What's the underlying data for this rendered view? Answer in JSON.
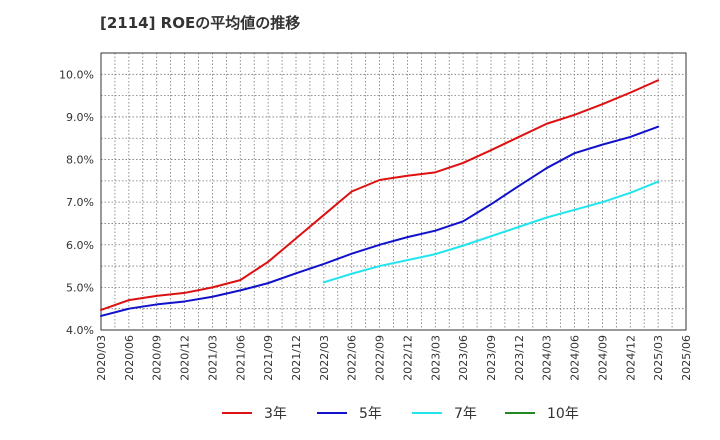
{
  "chart_data": {
    "type": "line",
    "title": "[2114]  ROEの平均値の推移",
    "xlabel": "",
    "ylabel": "",
    "ylim": [
      4.0,
      10.5
    ],
    "yticks": [
      4.0,
      5.0,
      6.0,
      7.0,
      8.0,
      9.0,
      10.0
    ],
    "ytick_labels": [
      "4.0%",
      "5.0%",
      "6.0%",
      "7.0%",
      "8.0%",
      "9.0%",
      "10.0%"
    ],
    "categories": [
      "2020/03",
      "2020/06",
      "2020/09",
      "2020/12",
      "2021/03",
      "2021/06",
      "2021/09",
      "2021/12",
      "2022/03",
      "2022/06",
      "2022/09",
      "2022/12",
      "2023/03",
      "2023/06",
      "2023/09",
      "2023/12",
      "2024/03",
      "2024/06",
      "2024/09",
      "2024/12",
      "2025/03",
      "2025/06"
    ],
    "grid": true,
    "legend_position": "bottom",
    "series": [
      {
        "name": "3年",
        "color": "#dd1111",
        "values": [
          4.47,
          4.7,
          4.8,
          4.87,
          5.0,
          5.17,
          5.6,
          6.15,
          6.7,
          7.25,
          7.52,
          7.62,
          7.7,
          7.92,
          8.22,
          8.53,
          8.84,
          9.05,
          9.3,
          9.57,
          9.86,
          null
        ]
      },
      {
        "name": "5年",
        "color": "#1111cc",
        "values": [
          4.33,
          4.5,
          4.6,
          4.67,
          4.78,
          4.93,
          5.1,
          5.33,
          5.55,
          5.79,
          6.0,
          6.18,
          6.33,
          6.55,
          6.95,
          7.38,
          7.8,
          8.15,
          8.35,
          8.53,
          8.77,
          null
        ]
      },
      {
        "name": "7年",
        "color": "#22e5ee",
        "values": [
          null,
          null,
          null,
          null,
          null,
          null,
          null,
          null,
          5.12,
          5.32,
          5.5,
          5.64,
          5.78,
          5.98,
          6.2,
          6.42,
          6.64,
          6.82,
          7.0,
          7.22,
          7.48,
          null
        ]
      },
      {
        "name": "10年",
        "color": "#228822",
        "values": [
          null,
          null,
          null,
          null,
          null,
          null,
          null,
          null,
          null,
          null,
          null,
          null,
          null,
          null,
          null,
          null,
          null,
          null,
          null,
          null,
          null,
          null
        ]
      }
    ]
  }
}
